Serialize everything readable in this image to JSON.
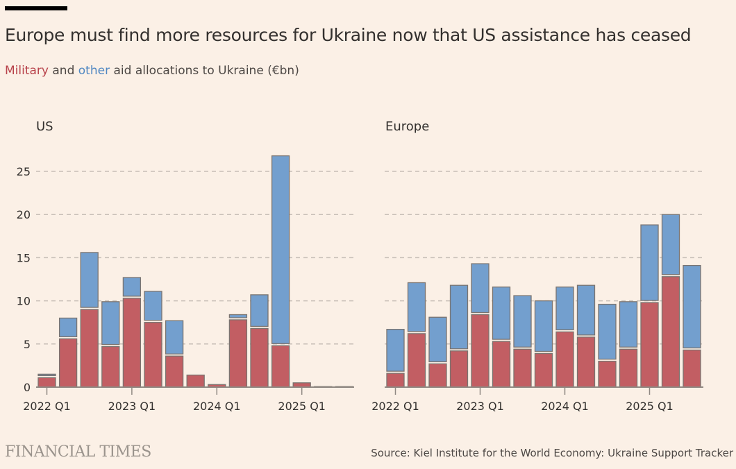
{
  "header": {
    "title": "Europe must find more resources for Ukraine now that US assistance has ceased",
    "subtitle_military": "Military",
    "subtitle_and": " and ",
    "subtitle_other": "other",
    "subtitle_rest": " aid allocations to Ukraine (€bn)"
  },
  "footer": {
    "logo": "FINANCIAL TIMES",
    "source": "Source: Kiel Institute for the World Economy: Ukraine Support Tracker"
  },
  "colors": {
    "military": "#c25e63",
    "other": "#739fce",
    "background": "#fbf0e6"
  },
  "chart_data": [
    {
      "type": "bar",
      "stacked": true,
      "title": "US",
      "xlabel": "",
      "ylabel": "€bn",
      "ylim": [
        0,
        27
      ],
      "yticks": [
        0,
        5,
        10,
        15,
        20,
        25
      ],
      "grid": true,
      "categories": [
        "2022 Q1",
        "2022 Q2",
        "2022 Q3",
        "2022 Q4",
        "2023 Q1",
        "2023 Q2",
        "2023 Q3",
        "2023 Q4",
        "2024 Q1",
        "2024 Q2",
        "2024 Q3",
        "2024 Q4",
        "2025 Q1",
        "2025 Q2",
        "2025 Q3"
      ],
      "xtick_labels": [
        "2022 Q1",
        "2023 Q1",
        "2024 Q1",
        "2025 Q1"
      ],
      "series": [
        {
          "name": "Military",
          "values": [
            1.1,
            5.6,
            9.0,
            4.7,
            10.3,
            7.5,
            3.6,
            1.4,
            0.3,
            7.8,
            6.8,
            4.8,
            0.5,
            0.05,
            0.05
          ]
        },
        {
          "name": "Other",
          "values": [
            0.4,
            2.4,
            6.6,
            5.2,
            2.4,
            3.6,
            4.1,
            0.0,
            0.0,
            0.6,
            3.9,
            22.0,
            0.0,
            0.0,
            0.0
          ]
        }
      ]
    },
    {
      "type": "bar",
      "stacked": true,
      "title": "Europe",
      "xlabel": "",
      "ylabel": "€bn",
      "ylim": [
        0,
        27
      ],
      "yticks": [
        0,
        5,
        10,
        15,
        20,
        25
      ],
      "grid": true,
      "categories": [
        "2022 Q1",
        "2022 Q2",
        "2022 Q3",
        "2022 Q4",
        "2023 Q1",
        "2023 Q2",
        "2023 Q3",
        "2023 Q4",
        "2024 Q1",
        "2024 Q2",
        "2024 Q3",
        "2024 Q4",
        "2025 Q1",
        "2025 Q2",
        "2025 Q3"
      ],
      "xtick_labels": [
        "2022 Q1",
        "2023 Q1",
        "2024 Q1",
        "2025 Q1"
      ],
      "series": [
        {
          "name": "Military",
          "values": [
            1.6,
            6.2,
            2.7,
            4.2,
            8.4,
            5.3,
            4.4,
            3.9,
            6.4,
            5.8,
            3.0,
            4.4,
            9.8,
            12.8,
            4.3
          ]
        },
        {
          "name": "Other",
          "values": [
            5.1,
            5.9,
            5.4,
            7.6,
            5.9,
            6.3,
            6.2,
            6.1,
            5.2,
            6.0,
            6.6,
            5.5,
            9.0,
            7.2,
            9.8
          ]
        }
      ]
    }
  ]
}
